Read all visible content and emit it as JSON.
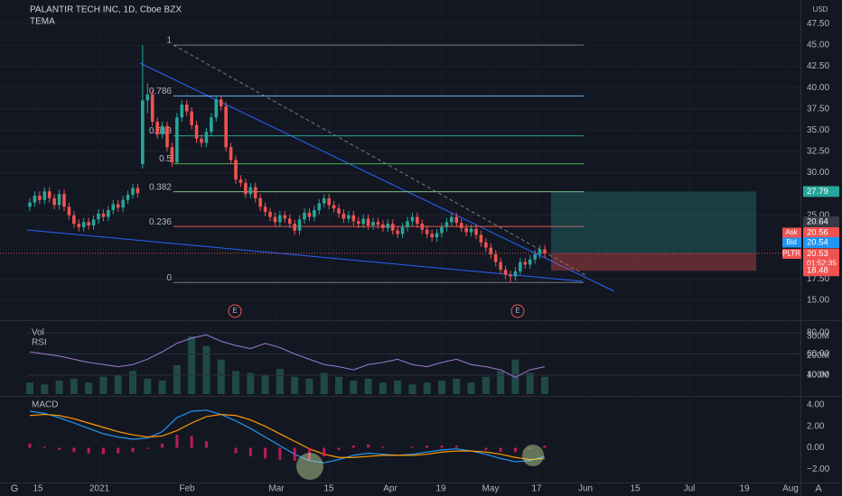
{
  "chart_data": [
    {
      "type": "candlestick",
      "title": "PALANTIR TECH INC, 1D, Cboe BZX",
      "subtitle": "TEMA",
      "currency": "USD",
      "ylim": [
        13.2,
        50.3
      ],
      "yticks": [
        {
          "value": 47.5,
          "label": "47.50"
        },
        {
          "value": 45,
          "label": "45.00"
        },
        {
          "value": 42.5,
          "label": "42.50"
        },
        {
          "value": 40,
          "label": "40.00"
        },
        {
          "value": 37.5,
          "label": "37.50"
        },
        {
          "value": 35,
          "label": "35.00"
        },
        {
          "value": 32.5,
          "label": "32.50"
        },
        {
          "value": 30,
          "label": "30.00"
        },
        {
          "value": 25,
          "label": "25.00"
        },
        {
          "value": 17.5,
          "label": "17.50"
        },
        {
          "value": 15,
          "label": "15.00"
        }
      ],
      "xtick_labels": [
        "15",
        "2021",
        "Feb",
        "Mar",
        "15",
        "Apr",
        "19",
        "May",
        "17",
        "Jun",
        "15",
        "Jul",
        "19",
        "Aug"
      ],
      "up_color": "#26a69a",
      "down_color": "#ef5350",
      "grid": true,
      "open": [
        26.0,
        26.5,
        27.3,
        26.8,
        27.8,
        27.0,
        26.2,
        27.5,
        26.0,
        25.0,
        24.0,
        23.6,
        24.2,
        23.8,
        24.5,
        25.2,
        24.8,
        25.6,
        26.3,
        25.9,
        26.8,
        27.4,
        28.2,
        31.0,
        38.5,
        39.2,
        36.0,
        34.5,
        35.5,
        33.0,
        31.2,
        36.5,
        38.0,
        37.2,
        35.6,
        34.0,
        33.5,
        34.8,
        36.5,
        38.6,
        37.8,
        33.0,
        31.5,
        29.2,
        28.8,
        27.5,
        28.3,
        27.0,
        26.0,
        25.4,
        24.8,
        24.2,
        25.0,
        24.6,
        24.0,
        23.2,
        24.5,
        25.3,
        24.8,
        25.6,
        26.4,
        27.0,
        26.2,
        25.8,
        25.2,
        24.6,
        25.0,
        24.3,
        24.0,
        24.6,
        23.8,
        24.2,
        23.9,
        23.5,
        24.0,
        23.2,
        22.8,
        23.6,
        24.3,
        24.8,
        24.0,
        23.3,
        22.8,
        22.4,
        22.9,
        23.6,
        24.2,
        24.8,
        24.1,
        23.5,
        23.0,
        23.4,
        22.7,
        21.8,
        21.2,
        20.4,
        19.5,
        18.6,
        18.0,
        17.8,
        18.4,
        19.5,
        19.2,
        19.8,
        20.4,
        21.0
      ],
      "high": [
        27.0,
        27.8,
        27.8,
        28.3,
        28.3,
        27.5,
        28.0,
        28.0,
        26.5,
        25.5,
        24.5,
        24.7,
        24.7,
        25.0,
        25.7,
        25.7,
        26.1,
        26.8,
        26.8,
        27.3,
        27.9,
        28.7,
        28.7,
        45.0,
        40.5,
        39.7,
        36.5,
        36.0,
        36.0,
        33.5,
        37.0,
        38.5,
        38.5,
        37.7,
        36.1,
        34.5,
        35.3,
        37.0,
        39.1,
        39.1,
        38.3,
        33.5,
        32.0,
        29.7,
        29.3,
        28.8,
        28.8,
        27.5,
        26.5,
        25.9,
        25.3,
        25.5,
        25.5,
        25.1,
        24.5,
        25.0,
        25.8,
        25.8,
        26.1,
        26.9,
        27.5,
        27.5,
        26.7,
        26.3,
        25.7,
        25.5,
        25.5,
        24.8,
        25.1,
        25.1,
        24.7,
        24.7,
        24.4,
        24.5,
        24.5,
        23.7,
        24.1,
        24.8,
        25.3,
        25.3,
        24.5,
        23.8,
        23.3,
        23.4,
        24.1,
        24.7,
        25.3,
        25.3,
        24.6,
        24.0,
        23.9,
        23.9,
        23.2,
        22.3,
        21.7,
        20.9,
        20.0,
        19.1,
        18.5,
        18.9,
        20.0,
        20.0,
        20.3,
        20.9,
        21.5,
        21.5
      ],
      "low": [
        25.5,
        26.0,
        26.3,
        26.3,
        26.5,
        25.7,
        25.7,
        25.5,
        24.5,
        23.5,
        23.1,
        23.1,
        23.3,
        23.3,
        24.0,
        24.3,
        24.3,
        25.1,
        25.4,
        25.4,
        26.3,
        26.9,
        27.1,
        30.5,
        37.0,
        35.5,
        34.0,
        34.0,
        32.5,
        30.7,
        31.0,
        36.0,
        36.7,
        35.1,
        33.5,
        33.0,
        33.0,
        34.3,
        36.0,
        37.3,
        32.5,
        31.0,
        28.7,
        28.3,
        27.0,
        27.0,
        26.5,
        25.5,
        24.9,
        24.3,
        23.7,
        23.7,
        24.1,
        23.5,
        22.7,
        22.7,
        24.0,
        24.3,
        24.3,
        25.1,
        25.9,
        25.7,
        25.3,
        24.7,
        24.1,
        24.1,
        23.8,
        23.5,
        23.5,
        23.3,
        23.3,
        23.4,
        23.0,
        23.0,
        22.7,
        22.3,
        22.3,
        23.1,
        23.8,
        23.5,
        22.8,
        22.3,
        21.9,
        21.9,
        22.4,
        23.1,
        23.7,
        23.6,
        23.0,
        22.5,
        22.5,
        22.2,
        21.3,
        20.7,
        19.9,
        19.0,
        18.1,
        17.5,
        17.1,
        17.3,
        18.0,
        18.7,
        18.7,
        19.3,
        19.9,
        20.0
      ],
      "close": [
        26.5,
        27.3,
        26.8,
        27.8,
        27.0,
        26.2,
        27.5,
        26.0,
        25.0,
        24.0,
        23.6,
        24.2,
        23.8,
        24.5,
        25.2,
        24.8,
        25.6,
        26.3,
        25.9,
        26.8,
        27.4,
        28.2,
        27.6,
        38.5,
        39.2,
        36.0,
        34.5,
        35.5,
        33.0,
        31.2,
        36.5,
        38.0,
        37.2,
        35.6,
        34.0,
        33.5,
        34.8,
        36.5,
        38.6,
        37.8,
        33.0,
        31.5,
        29.2,
        28.8,
        27.5,
        28.3,
        27.0,
        26.0,
        25.4,
        24.8,
        24.2,
        25.0,
        24.6,
        24.0,
        23.2,
        24.5,
        25.3,
        24.8,
        25.6,
        26.4,
        27.0,
        26.2,
        25.8,
        25.2,
        24.6,
        25.0,
        24.3,
        24.0,
        24.6,
        23.8,
        24.2,
        23.9,
        23.5,
        24.0,
        23.2,
        22.8,
        23.6,
        24.3,
        24.8,
        24.0,
        23.3,
        22.8,
        22.4,
        22.9,
        23.6,
        24.2,
        24.8,
        24.1,
        23.5,
        23.0,
        23.4,
        22.7,
        21.8,
        21.2,
        20.4,
        19.5,
        18.6,
        18.0,
        17.8,
        18.4,
        19.5,
        19.2,
        19.8,
        20.4,
        21.0,
        20.5
      ],
      "fib": {
        "levels": [
          1,
          0.786,
          0.618,
          0.5,
          0.382,
          0.236,
          0
        ],
        "prices": [
          45.0,
          39.03,
          34.34,
          31.05,
          27.76,
          23.68,
          17.1
        ],
        "colors": [
          "#787b86",
          "#64b5f6",
          "#26a69a",
          "#4caf50",
          "#81c784",
          "#ef5350",
          "#787b86"
        ]
      },
      "earnings": [
        "E",
        "E"
      ],
      "position": {
        "target": 27.79,
        "entry": 20.53,
        "stop": 18.48
      },
      "price_tags": [
        {
          "value": 20.64
        },
        {
          "name": "Ask",
          "value": 20.56
        },
        {
          "name": "Bid",
          "value": 20.54
        },
        {
          "name": "PLTR",
          "value": 20.53,
          "countdown": "01:52:35"
        }
      ]
    },
    {
      "type": "bar",
      "title": "Vol",
      "ylim": [
        0,
        375000000
      ],
      "color": "#2a6b62",
      "yticks": [
        {
          "value": 300000000,
          "label": "300M"
        },
        {
          "value": 200000000,
          "label": "200M"
        },
        {
          "value": 100000000,
          "label": "100M"
        }
      ],
      "values": [
        60000000,
        50000000,
        70000000,
        80000000,
        60000000,
        90000000,
        100000000,
        120000000,
        80000000,
        70000000,
        150000000,
        300000000,
        250000000,
        180000000,
        120000000,
        110000000,
        100000000,
        130000000,
        90000000,
        80000000,
        110000000,
        90000000,
        70000000,
        80000000,
        60000000,
        70000000,
        50000000,
        60000000,
        70000000,
        80000000,
        60000000,
        90000000,
        120000000,
        180000000,
        110000000,
        90000000
      ]
    },
    {
      "type": "line",
      "title": "RSI",
      "ylim": [
        22.1,
        90.2
      ],
      "color": "#9c7bd1",
      "yticks": [
        {
          "value": 80,
          "label": "80.00"
        },
        {
          "value": 60,
          "label": "60.00"
        },
        {
          "value": 40,
          "label": "40.00"
        }
      ],
      "values": [
        62,
        60,
        58,
        55,
        52,
        50,
        48,
        50,
        55,
        62,
        70,
        75,
        78,
        72,
        68,
        65,
        70,
        66,
        60,
        55,
        50,
        48,
        45,
        50,
        52,
        55,
        50,
        48,
        52,
        55,
        50,
        48,
        45,
        38,
        45,
        48
      ]
    },
    {
      "type": "line",
      "title": "MACD",
      "ylim": [
        -3.23,
        4.66
      ],
      "yticks": [
        {
          "value": 4,
          "label": "4.00"
        },
        {
          "value": 2,
          "label": "2.00"
        },
        {
          "value": 0,
          "label": "0.00"
        },
        {
          "value": -2,
          "label": "−2.00"
        }
      ],
      "series": [
        {
          "color": "#2196f3",
          "values": [
            3.4,
            3.2,
            2.8,
            2.3,
            1.8,
            1.3,
            1.0,
            0.8,
            0.9,
            1.5,
            2.8,
            3.4,
            3.5,
            3.1,
            2.5,
            1.8,
            1.0,
            0.2,
            -0.6,
            -1.2,
            -1.4,
            -1.1,
            -0.7,
            -0.5,
            -0.6,
            -0.7,
            -0.6,
            -0.4,
            -0.2,
            -0.1,
            -0.3,
            -0.6,
            -1.0,
            -1.3,
            -1.2,
            -0.8
          ]
        },
        {
          "color": "#ff9800",
          "values": [
            3.0,
            3.1,
            3.0,
            2.7,
            2.3,
            1.9,
            1.5,
            1.2,
            1.0,
            1.1,
            1.6,
            2.3,
            2.9,
            3.1,
            3.0,
            2.6,
            2.0,
            1.3,
            0.6,
            -0.1,
            -0.6,
            -0.9,
            -0.9,
            -0.8,
            -0.7,
            -0.7,
            -0.7,
            -0.6,
            -0.4,
            -0.3,
            -0.3,
            -0.4,
            -0.6,
            -0.9,
            -1.1,
            -1.0
          ]
        },
        {
          "style": "histogram",
          "color": "#e91e63",
          "values": [
            0.4,
            0.1,
            -0.2,
            -0.4,
            -0.5,
            -0.6,
            -0.5,
            -0.4,
            -0.1,
            0.4,
            1.2,
            1.1,
            0.6,
            0.0,
            -0.5,
            -0.8,
            -1.0,
            -1.1,
            -1.2,
            -1.1,
            -0.8,
            -0.2,
            0.2,
            0.3,
            0.1,
            0.0,
            0.1,
            0.2,
            0.2,
            0.2,
            0.0,
            -0.2,
            -0.4,
            -0.4,
            -0.1,
            0.2
          ]
        }
      ]
    }
  ]
}
